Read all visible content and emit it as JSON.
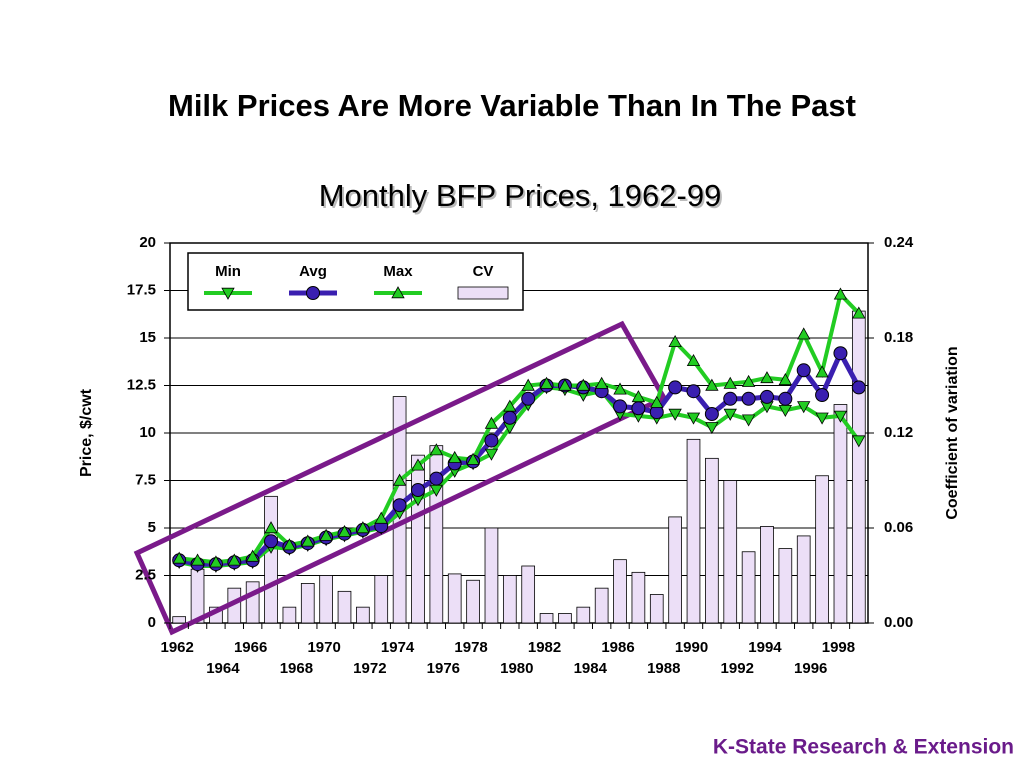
{
  "chart_data": {
    "type": "line",
    "title": "Milk Prices Are More Variable Than In The Past",
    "subtitle": "Monthly BFP Prices, 1962-99",
    "y_label": "Price, $/cwt",
    "y2_label": "Coefficient of variation",
    "annotations": [
      "K-State Research & Extension"
    ],
    "categories": [
      "1962",
      null,
      "1964",
      null,
      "1966",
      null,
      "1968",
      null,
      "1970",
      null,
      "1972",
      null,
      "1974",
      null,
      "1976",
      null,
      "1978",
      null,
      "1980",
      null,
      "1982",
      null,
      "1984",
      null,
      "1986",
      null,
      "1988",
      null,
      "1990",
      null,
      "1992",
      null,
      "1994",
      null,
      "1996",
      null,
      "1998",
      null
    ],
    "series": [
      {
        "name": "Min",
        "color": "#22cc22",
        "marker": "triangle-down",
        "values": [
          3.2,
          3.0,
          3.0,
          3.1,
          3.2,
          4.0,
          3.9,
          4.1,
          4.4,
          4.6,
          4.8,
          5.0,
          5.8,
          6.5,
          7.0,
          8.0,
          8.4,
          8.9,
          10.3,
          11.5,
          12.4,
          12.3,
          12.0,
          12.2,
          11.0,
          10.9,
          10.8,
          11.0,
          10.8,
          10.3,
          11.0,
          10.7,
          11.4,
          11.2,
          11.4,
          10.8,
          10.9,
          9.6
        ]
      },
      {
        "name": "Avg",
        "color": "#3a1fb0",
        "marker": "circle",
        "values": [
          3.3,
          3.1,
          3.1,
          3.2,
          3.3,
          4.3,
          4.0,
          4.2,
          4.5,
          4.7,
          4.9,
          5.1,
          6.2,
          7.0,
          7.6,
          8.4,
          8.5,
          9.6,
          10.8,
          11.8,
          12.5,
          12.5,
          12.4,
          12.2,
          11.4,
          11.3,
          11.1,
          12.4,
          12.2,
          11.0,
          11.8,
          11.8,
          11.9,
          11.8,
          13.3,
          12.0,
          14.2,
          12.4
        ]
      },
      {
        "name": "Max",
        "color": "#22cc22",
        "marker": "triangle-up",
        "values": [
          3.4,
          3.3,
          3.2,
          3.3,
          3.5,
          5.0,
          4.1,
          4.3,
          4.6,
          4.8,
          5.0,
          5.5,
          7.5,
          8.3,
          9.1,
          8.7,
          8.6,
          10.5,
          11.4,
          12.5,
          12.6,
          12.5,
          12.5,
          12.6,
          12.3,
          11.9,
          11.6,
          14.8,
          13.8,
          12.5,
          12.6,
          12.7,
          12.9,
          12.8,
          15.2,
          13.2,
          17.3,
          16.3
        ]
      },
      {
        "name": "CV",
        "type": "bar",
        "axis": "y2",
        "color": "#ecdff7",
        "values": [
          0.004,
          0.034,
          0.01,
          0.022,
          0.026,
          0.08,
          0.01,
          0.025,
          0.03,
          0.02,
          0.01,
          0.03,
          0.143,
          0.106,
          0.112,
          0.031,
          0.027,
          0.06,
          0.03,
          0.036,
          0.006,
          0.006,
          0.01,
          0.022,
          0.04,
          0.032,
          0.018,
          0.067,
          0.116,
          0.104,
          0.09,
          0.045,
          0.061,
          0.047,
          0.055,
          0.093,
          0.138,
          0.197
        ]
      }
    ],
    "ylim": [
      0,
      20
    ],
    "yticks": [
      0,
      2.5,
      5,
      7.5,
      10,
      12.5,
      15,
      17.5,
      20
    ],
    "y2lim": [
      0,
      0.24
    ],
    "y2ticks": [
      {
        "value": 0,
        "label": "0.00"
      },
      0.06,
      0.12,
      0.18,
      0.24
    ],
    "legend": "top-left"
  }
}
